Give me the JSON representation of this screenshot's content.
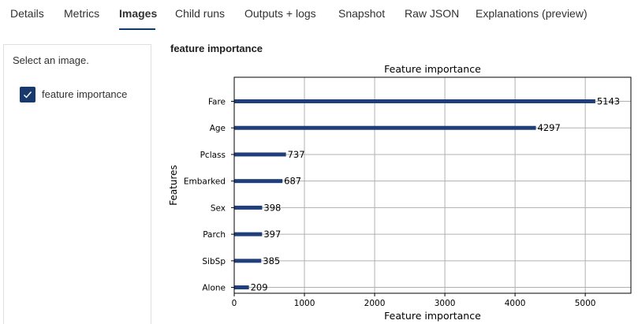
{
  "tabs": [
    {
      "label": "Details",
      "active": false
    },
    {
      "label": "Metrics",
      "active": false
    },
    {
      "label": "Images",
      "active": true
    },
    {
      "label": "Child runs",
      "active": false
    },
    {
      "label": "Outputs + logs",
      "active": false
    },
    {
      "label": "Snapshot",
      "active": false
    },
    {
      "label": "Raw JSON",
      "active": false
    },
    {
      "label": "Explanations (preview)",
      "active": false
    }
  ],
  "left_panel": {
    "prompt": "Select an image.",
    "items": [
      {
        "label": "feature importance",
        "checked": true,
        "icon": "checkmark-icon"
      }
    ]
  },
  "image": {
    "title": "feature importance"
  },
  "colors": {
    "accent": "#17396d",
    "bar": "#1f3e7a",
    "grid": "#b0b0b0"
  },
  "chart_data": {
    "type": "bar",
    "orientation": "horizontal",
    "title": "Feature importance",
    "xlabel": "Feature importance",
    "ylabel": "Features",
    "categories": [
      "Fare",
      "Age",
      "Pclass",
      "Embarked",
      "Sex",
      "Parch",
      "SibSp",
      "Alone"
    ],
    "values": [
      5143,
      4297,
      737,
      687,
      398,
      397,
      385,
      209
    ],
    "xlim": [
      0,
      5650
    ],
    "xticks": [
      0,
      1000,
      2000,
      3000,
      4000,
      5000
    ],
    "grid": true
  }
}
